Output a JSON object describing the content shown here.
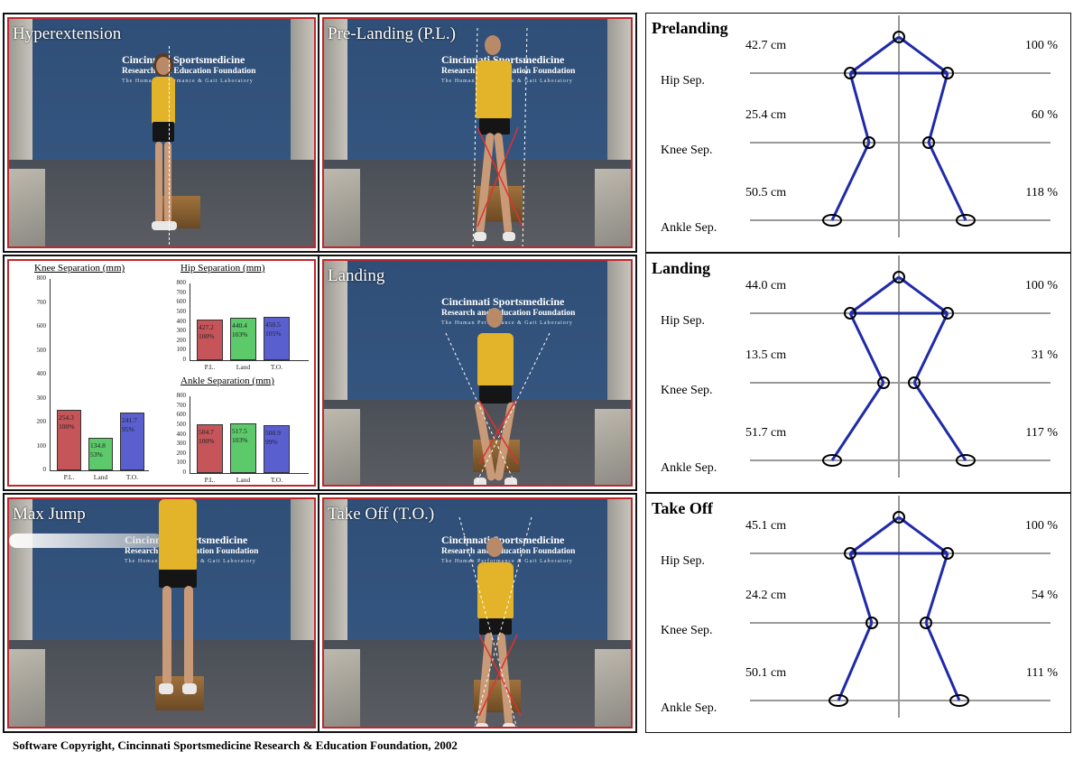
{
  "panels": {
    "hyperextension": {
      "title": "Hyperextension"
    },
    "pre_landing": {
      "title": "Pre-Landing (P.L.)"
    },
    "landing": {
      "title": "Landing"
    },
    "max_jump": {
      "title": "Max Jump"
    },
    "take_off": {
      "title": "Take Off (T.O.)"
    }
  },
  "logo": {
    "line1": "Cincinnati Sportsmedicine",
    "line2": "Research and Education Foundation",
    "line3": "The Human Performance & Gait Laboratory"
  },
  "chart_data": [
    {
      "type": "bar",
      "title": "Knee Separation (mm)",
      "categories": [
        "P.L.",
        "Land",
        "T.O."
      ],
      "values": [
        254.3,
        134.8,
        241.7
      ],
      "percent_labels": [
        "100%",
        "53%",
        "95%"
      ],
      "value_labels": [
        "254.3",
        "134.8",
        "241.7"
      ],
      "colors": [
        "#c6555a",
        "#5cc96a",
        "#5a5fd0"
      ],
      "ylim": [
        0,
        800
      ],
      "yticks": [
        0,
        100,
        200,
        300,
        400,
        500,
        600,
        700,
        800
      ]
    },
    {
      "type": "bar",
      "title": "Hip Separation (mm)",
      "categories": [
        "P.L.",
        "Land",
        "T.O."
      ],
      "values": [
        427.2,
        440.4,
        450.5
      ],
      "percent_labels": [
        "100%",
        "103%",
        "105%"
      ],
      "value_labels": [
        "427.2",
        "440.4",
        "450.5"
      ],
      "colors": [
        "#c6555a",
        "#5cc96a",
        "#5a5fd0"
      ],
      "ylim": [
        0,
        800
      ],
      "yticks": [
        0,
        100,
        200,
        300,
        400,
        500,
        600,
        700,
        800
      ]
    },
    {
      "type": "bar",
      "title": "Ankle Separation (mm)",
      "categories": [
        "P.L.",
        "Land",
        "T.O."
      ],
      "values": [
        504.7,
        517.5,
        500.9
      ],
      "percent_labels": [
        "100%",
        "103%",
        "99%"
      ],
      "value_labels": [
        "504.7",
        "517.5",
        "500.9"
      ],
      "colors": [
        "#c6555a",
        "#5cc96a",
        "#5a5fd0"
      ],
      "ylim": [
        0,
        800
      ],
      "yticks": [
        0,
        100,
        200,
        300,
        400,
        500,
        600,
        700,
        800
      ]
    }
  ],
  "diagrams": [
    {
      "title": "Prelanding",
      "hip": {
        "label": "Hip Sep.",
        "cm": "42.7 cm",
        "pct": "100 %"
      },
      "knee": {
        "label": "Knee Sep.",
        "cm": "25.4 cm",
        "pct": "60 %"
      },
      "ankle": {
        "label": "Ankle Sep.",
        "cm": "50.5 cm",
        "pct": "118 %"
      },
      "hip_half": 54,
      "knee_half": 33,
      "ankle_half": 74
    },
    {
      "title": "Landing",
      "hip": {
        "label": "Hip Sep.",
        "cm": "44.0 cm",
        "pct": "100 %"
      },
      "knee": {
        "label": "Knee Sep.",
        "cm": "13.5 cm",
        "pct": "31 %"
      },
      "ankle": {
        "label": "Ankle Sep.",
        "cm": "51.7 cm",
        "pct": "117 %"
      },
      "hip_half": 54,
      "knee_half": 17,
      "ankle_half": 74
    },
    {
      "title": "Take Off",
      "hip": {
        "label": "Hip Sep.",
        "cm": "45.1 cm",
        "pct": "100 %"
      },
      "knee": {
        "label": "Knee Sep.",
        "cm": "24.2 cm",
        "pct": "54 %"
      },
      "ankle": {
        "label": "Ankle Sep.",
        "cm": "50.1 cm",
        "pct": "111 %"
      },
      "hip_half": 54,
      "knee_half": 30,
      "ankle_half": 67
    }
  ],
  "footer": "Software Copyright, Cincinnati Sportsmedicine Research & Education Foundation, 2002"
}
